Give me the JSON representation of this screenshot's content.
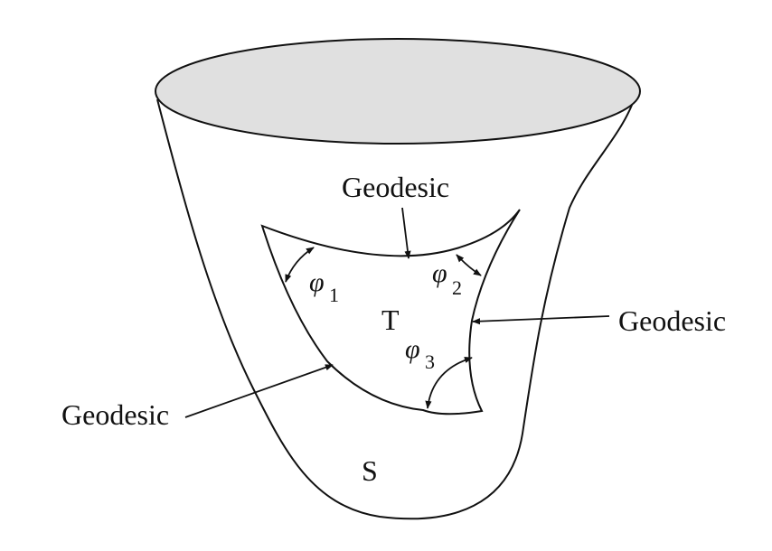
{
  "labels": {
    "geodesic_top": "Geodesic",
    "geodesic_right": "Geodesic",
    "geodesic_left": "Geodesic",
    "triangle": "T",
    "surface": "S"
  },
  "angles": {
    "phi1": {
      "symbol": "φ",
      "sub": "1"
    },
    "phi2": {
      "symbol": "φ",
      "sub": "2"
    },
    "phi3": {
      "symbol": "φ",
      "sub": "3"
    }
  },
  "colors": {
    "stroke": "#111111",
    "top_fill": "#e0e0e0",
    "background": "#ffffff"
  }
}
